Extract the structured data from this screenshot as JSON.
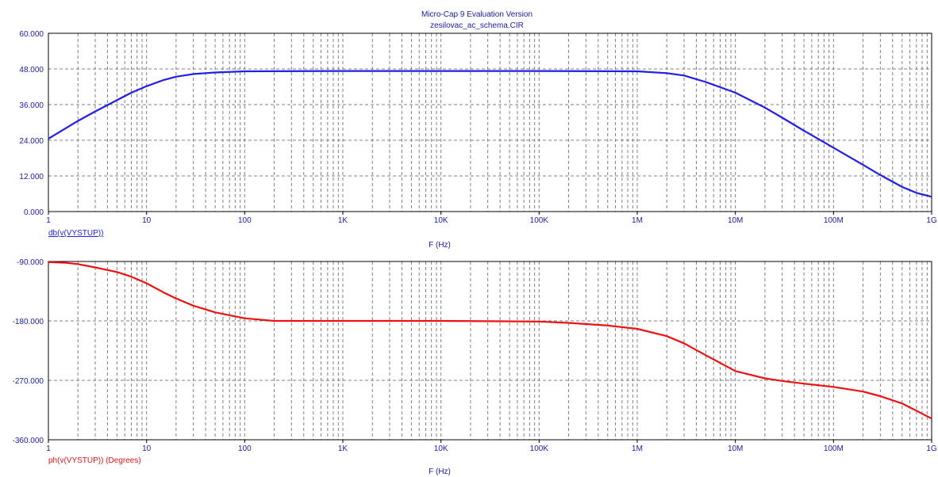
{
  "header": {
    "line1": "Micro-Cap 9 Evaluation Version",
    "line2": "zesilovac_ac_schema.CIR"
  },
  "colors": {
    "title": "#1a1aa6",
    "axis": "#000000",
    "grid": "#808080",
    "blue": "#1f1fe6",
    "red": "#ee1111"
  },
  "chart_data": [
    {
      "type": "line",
      "x_scale": "log",
      "xlim": [
        1,
        1000000000
      ],
      "ylim": [
        0,
        60
      ],
      "x_tick_labels": [
        "1",
        "10",
        "100",
        "1K",
        "10K",
        "100K",
        "1M",
        "10M",
        "100M",
        "1G"
      ],
      "y_tick_labels": [
        "60.000",
        "48.000",
        "36.000",
        "24.000",
        "12.000",
        "0.000"
      ],
      "y_ticks": [
        60,
        48,
        36,
        24,
        12,
        0
      ],
      "xlabel": "F (Hz)",
      "grid": true,
      "series": [
        {
          "name": "db(v(VYSTUP))",
          "color": "#1f1fe6",
          "x": [
            1,
            2,
            3,
            5,
            7,
            10,
            15,
            20,
            30,
            50,
            100,
            1000,
            10000,
            100000,
            1000000,
            2000000,
            3000000,
            5000000,
            10000000,
            20000000,
            30000000,
            50000000,
            100000000,
            200000000,
            300000000,
            500000000,
            700000000,
            1000000000
          ],
          "y": [
            24.5,
            30.5,
            33.7,
            37.5,
            40,
            42.2,
            44.3,
            45.4,
            46.3,
            46.8,
            47.2,
            47.3,
            47.3,
            47.3,
            47.2,
            46.6,
            45.8,
            43.6,
            40,
            35,
            31.6,
            27.2,
            21.5,
            15.7,
            12.3,
            8.3,
            6.3,
            5
          ]
        }
      ]
    },
    {
      "type": "line",
      "x_scale": "log",
      "xlim": [
        1,
        1000000000
      ],
      "ylim": [
        -360,
        -90
      ],
      "x_tick_labels": [
        "1",
        "10",
        "100",
        "1K",
        "10K",
        "100K",
        "1M",
        "10M",
        "100M",
        "1G"
      ],
      "y_tick_labels": [
        "-90.000",
        "-180.000",
        "-270.000",
        "-360.000"
      ],
      "y_ticks": [
        -90,
        -180,
        -270,
        -360
      ],
      "xlabel": "F (Hz)",
      "grid": true,
      "series": [
        {
          "name": "ph(v(VYSTUP)) (Degrees)",
          "color": "#ee1111",
          "x": [
            1,
            1.5,
            2,
            3,
            5,
            7,
            10,
            15,
            20,
            30,
            50,
            100,
            200,
            1000,
            10000,
            100000,
            200000,
            500000,
            1000000,
            2000000,
            3000000,
            5000000,
            10000000,
            20000000,
            30000000,
            50000000,
            100000000,
            200000000,
            300000000,
            500000000,
            700000000,
            1000000000
          ],
          "y": [
            -91,
            -92,
            -94,
            -99,
            -106,
            -113,
            -123,
            -137,
            -146,
            -157,
            -167,
            -176,
            -180,
            -180,
            -180,
            -181,
            -183,
            -187,
            -192,
            -203,
            -214,
            -232,
            -256,
            -267,
            -271,
            -275,
            -280,
            -287,
            -294,
            -305,
            -316,
            -328
          ]
        }
      ]
    }
  ]
}
